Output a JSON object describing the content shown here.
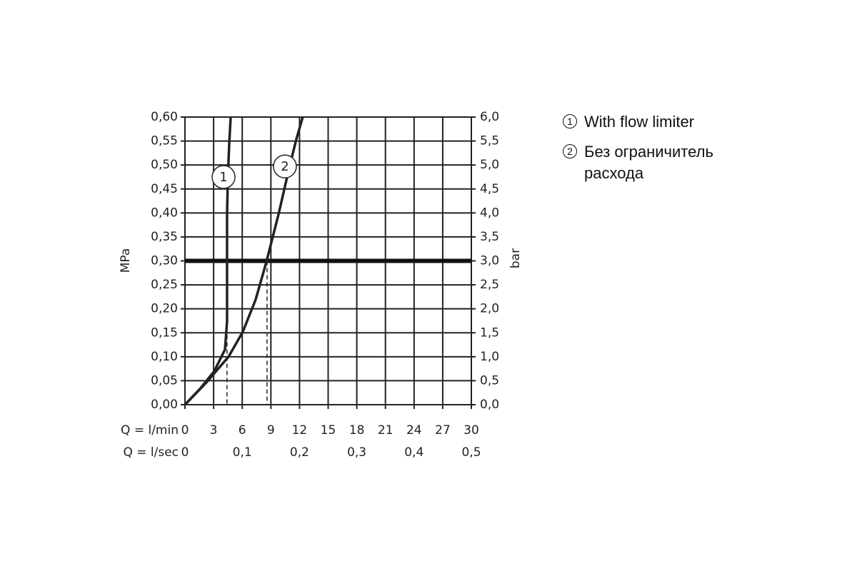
{
  "chart_data": {
    "type": "line",
    "xlabel": "Q = l/min",
    "x2label": "Q = l/sec",
    "ylabel": "MPa",
    "y2label": "bar",
    "xlim": [
      0,
      30
    ],
    "xticks": [
      0,
      3,
      6,
      9,
      12,
      15,
      18,
      21,
      24,
      27,
      30
    ],
    "x2lim": [
      0,
      0.5
    ],
    "x2ticks": [
      0,
      {
        "value": 0.1,
        "label": "0,1"
      },
      {
        "value": 0.2,
        "label": "0,2"
      },
      {
        "value": 0.3,
        "label": "0,3"
      },
      {
        "value": 0.4,
        "label": "0,4"
      },
      {
        "value": 0.5,
        "label": "0,5"
      }
    ],
    "ylim": [
      0,
      0.6
    ],
    "yticks": [
      {
        "value": 0,
        "label": "0,00"
      },
      {
        "value": 0.05,
        "label": "0,05"
      },
      {
        "value": 0.1,
        "label": "0,10"
      },
      {
        "value": 0.15,
        "label": "0,15"
      },
      {
        "value": 0.2,
        "label": "0,20"
      },
      {
        "value": 0.25,
        "label": "0,25"
      },
      {
        "value": 0.3,
        "label": "0,30"
      },
      {
        "value": 0.35,
        "label": "0,35"
      },
      {
        "value": 0.4,
        "label": "0,40"
      },
      {
        "value": 0.45,
        "label": "0,45"
      },
      {
        "value": 0.5,
        "label": "0,50"
      },
      {
        "value": 0.55,
        "label": "0,55"
      },
      {
        "value": 0.6,
        "label": "0,60"
      }
    ],
    "y2lim": [
      0,
      6
    ],
    "y2ticks": [
      {
        "value": 0,
        "label": "0,0"
      },
      {
        "value": 0.5,
        "label": "0,5"
      },
      {
        "value": 1,
        "label": "1,0"
      },
      {
        "value": 1.5,
        "label": "1,5"
      },
      {
        "value": 2,
        "label": "2,0"
      },
      {
        "value": 2.5,
        "label": "2,5"
      },
      {
        "value": 3,
        "label": "3,0"
      },
      {
        "value": 3.5,
        "label": "3,5"
      },
      {
        "value": 4,
        "label": "4,0"
      },
      {
        "value": 4.5,
        "label": "4,5"
      },
      {
        "value": 5,
        "label": "5,0"
      },
      {
        "value": 5.5,
        "label": "5,5"
      },
      {
        "value": 6,
        "label": "6,0"
      }
    ],
    "grid": true,
    "reference_line": 0.3,
    "droplines": [
      {
        "x": 4.4,
        "y": 0.16
      },
      {
        "x": 8.6,
        "y": 0.3
      }
    ],
    "series": [
      {
        "name": "With flow limiter",
        "label": "1",
        "color": "#222",
        "x": [
          0,
          1.57,
          3.07,
          4.19,
          4.41,
          4.41,
          4.41,
          4.49,
          4.64,
          4.79
        ],
        "values": [
          0,
          0.033,
          0.07,
          0.115,
          0.174,
          0.249,
          0.397,
          0.472,
          0.546,
          0.6
        ]
      },
      {
        "name": "Без ограничитель расхода",
        "label": "2",
        "color": "#222",
        "x": [
          0,
          2.32,
          4.56,
          6.06,
          7.4,
          8.53,
          9.8,
          10.92,
          11.67,
          12.34
        ],
        "values": [
          0,
          0.048,
          0.1,
          0.152,
          0.219,
          0.298,
          0.397,
          0.494,
          0.554,
          0.6
        ]
      }
    ]
  }
}
